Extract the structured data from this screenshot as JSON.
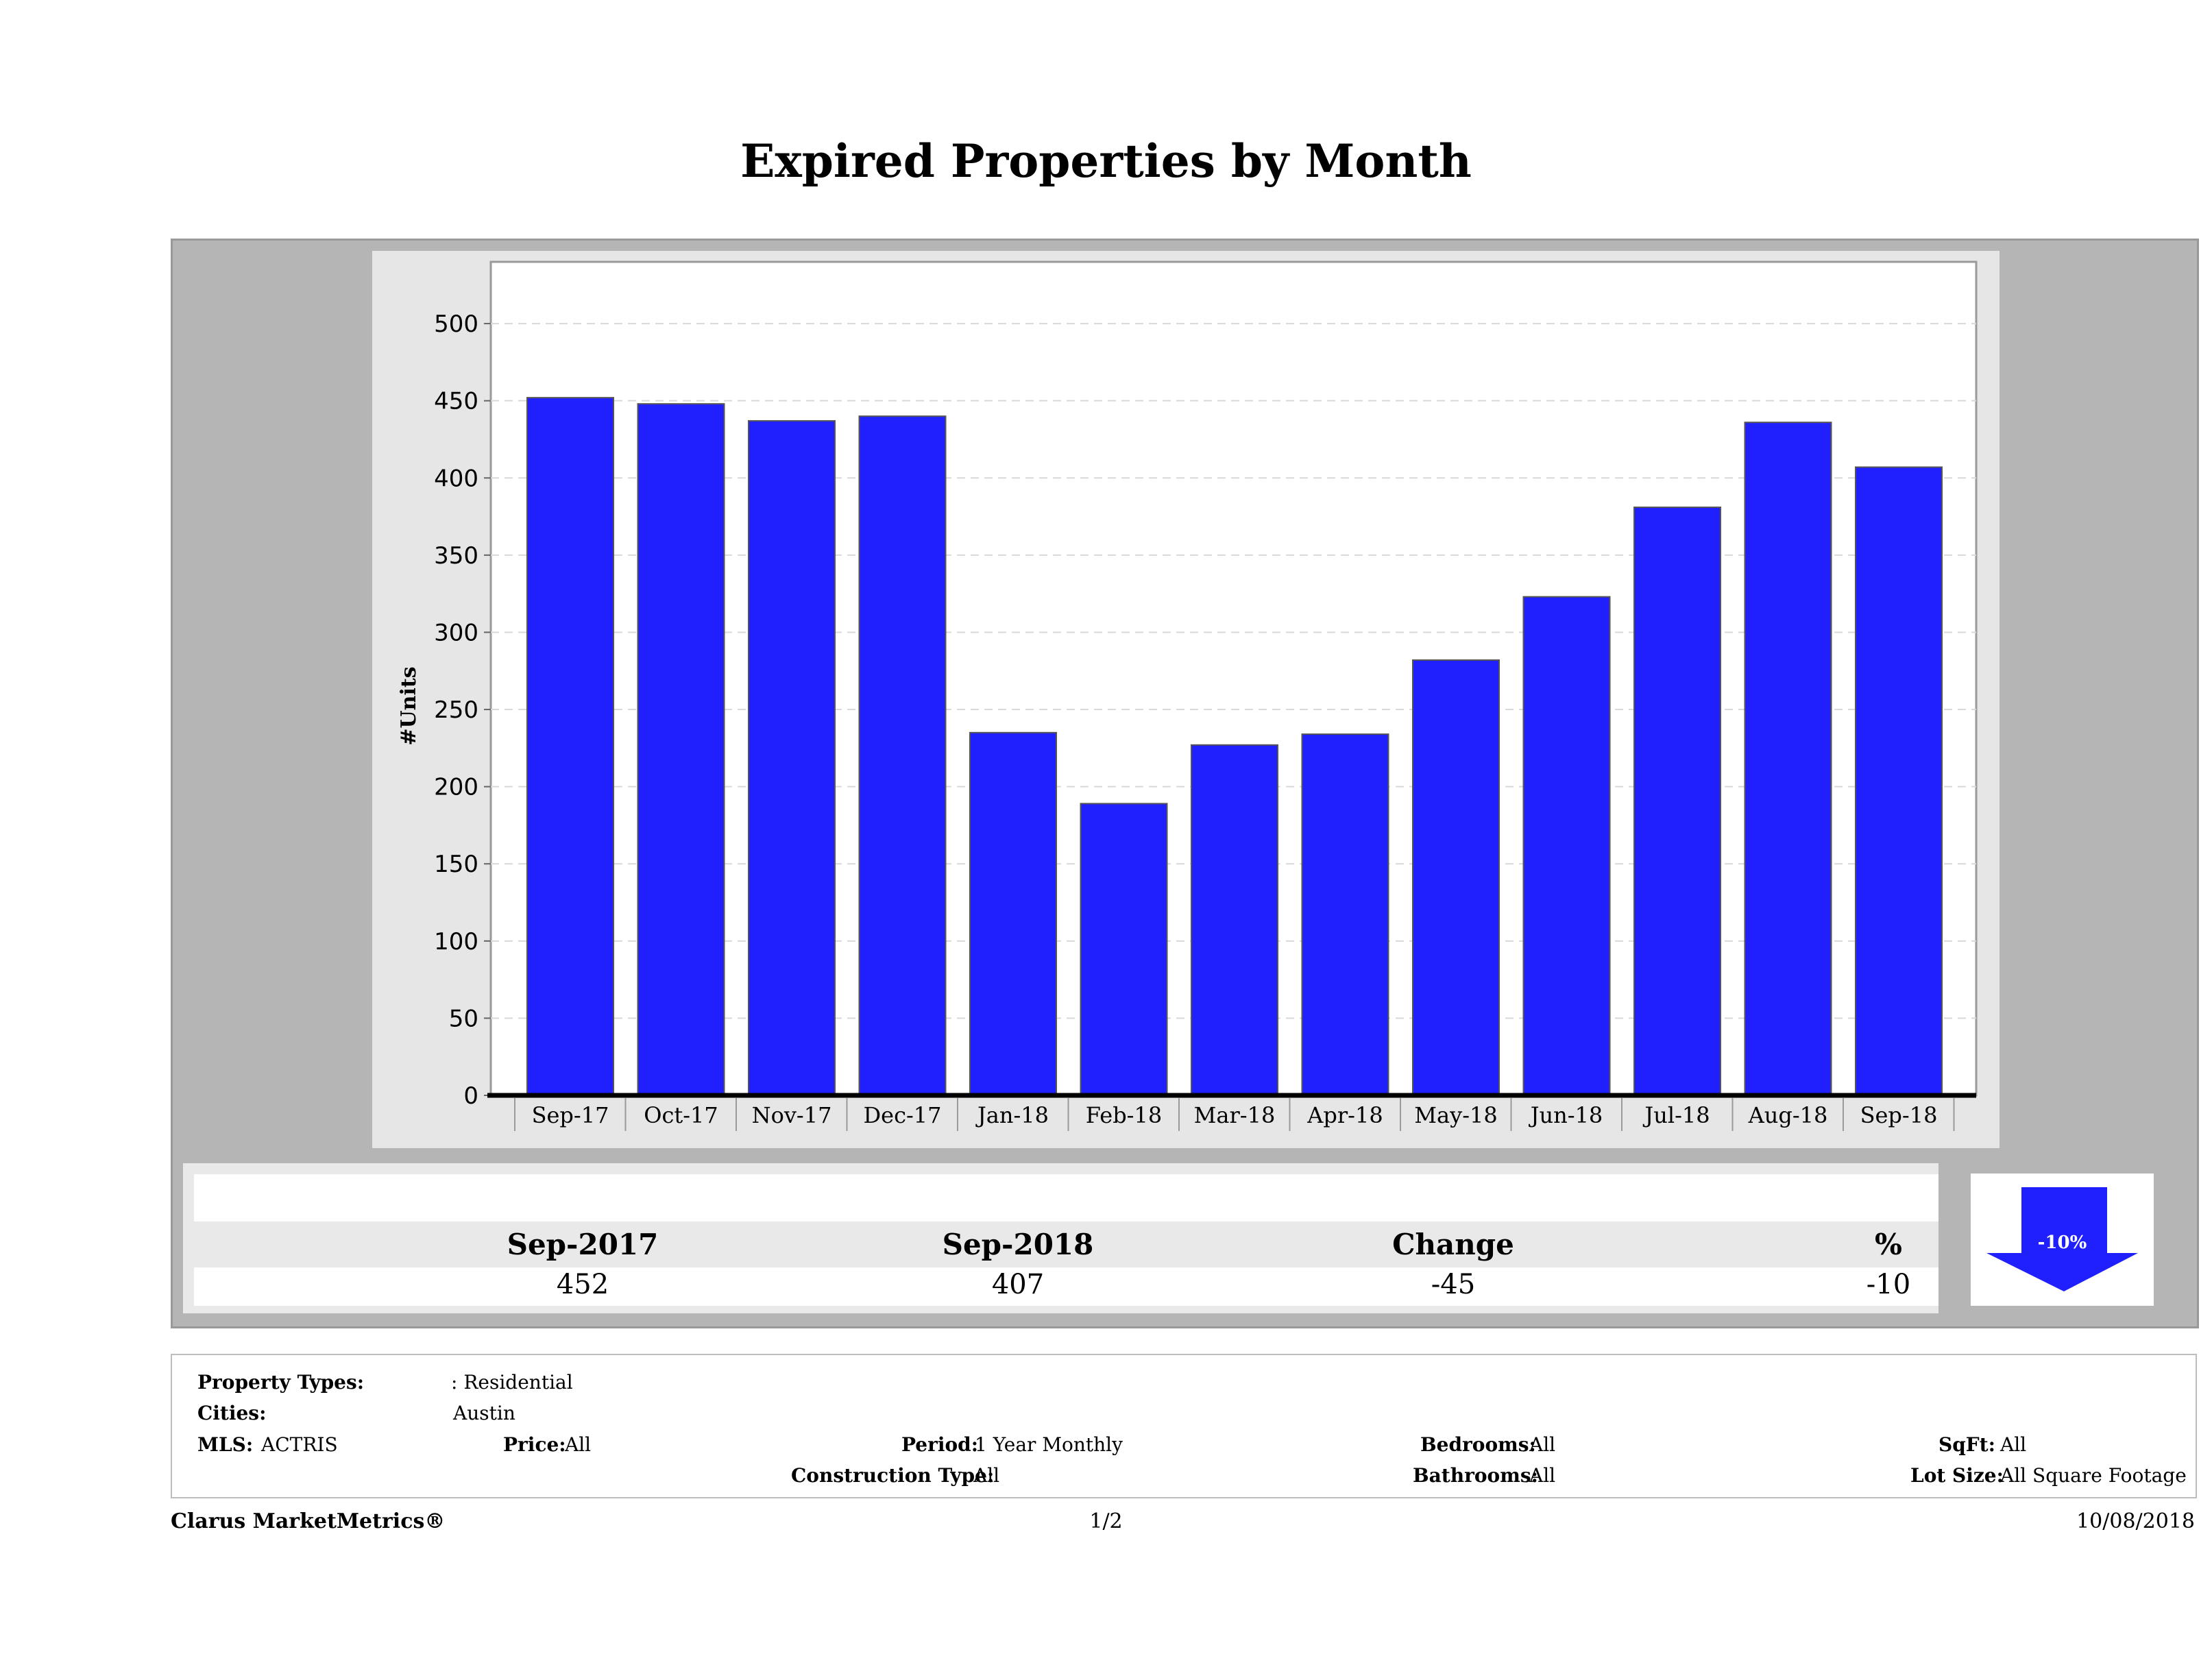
{
  "title": "Expired Properties by Month",
  "chart_data": {
    "type": "bar",
    "title": "Expired Properties by Month",
    "xlabel": "",
    "ylabel": "#Units",
    "ylim": [
      0,
      540
    ],
    "yticks": [
      0,
      50,
      100,
      150,
      200,
      250,
      300,
      350,
      400,
      450,
      500
    ],
    "grid": true,
    "categories": [
      "Sep-17",
      "Oct-17",
      "Nov-17",
      "Dec-17",
      "Jan-18",
      "Feb-18",
      "Mar-18",
      "Apr-18",
      "May-18",
      "Jun-18",
      "Jul-18",
      "Aug-18",
      "Sep-18"
    ],
    "values": [
      452,
      448,
      437,
      440,
      235,
      189,
      227,
      234,
      282,
      323,
      381,
      436,
      407
    ],
    "bar_color": "#2020ff"
  },
  "stats": {
    "labels": [
      "Sep-2017",
      "Sep-2018",
      "Change",
      "%"
    ],
    "values": [
      "452",
      "407",
      "-45",
      "-10"
    ],
    "badge": "-10%"
  },
  "filters": {
    "property_types_label": "Property Types:",
    "property_types_value": ": Residential",
    "cities_label": "Cities:",
    "cities_value": "Austin",
    "mls_label": "MLS:",
    "mls_value": "ACTRIS",
    "price_label": "Price:",
    "price_value": "All",
    "period_label": "Period:",
    "period_value": "1 Year Monthly",
    "construction_label": "Construction Type:",
    "construction_value": "All",
    "bedrooms_label": "Bedrooms:",
    "bedrooms_value": "All",
    "bathrooms_label": "Bathrooms:",
    "bathrooms_value": "All",
    "sqft_label": "SqFt:",
    "sqft_value": "All",
    "lotsize_label": "Lot Size:",
    "lotsize_value": "All Square Footage"
  },
  "footer": {
    "brand": "Clarus MarketMetrics®",
    "page": "1/2",
    "date": "10/08/2018"
  }
}
